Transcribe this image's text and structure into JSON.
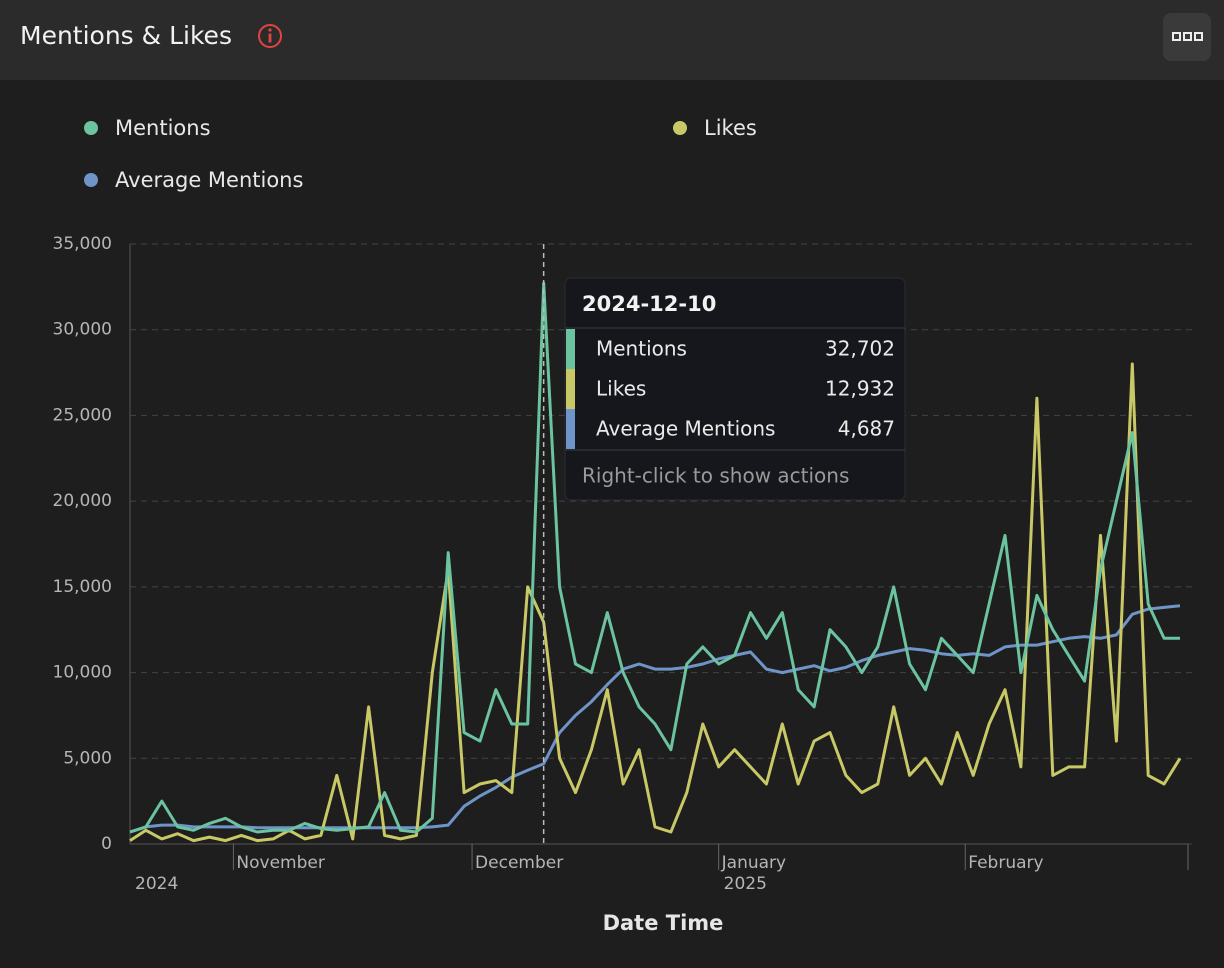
{
  "chart_data": {
    "type": "line",
    "title": "Mentions & Likes",
    "xlabel": "Date Time",
    "x": [
      "2024-10-19",
      "2024-10-21",
      "2024-10-23",
      "2024-10-25",
      "2024-10-27",
      "2024-10-29",
      "2024-10-31",
      "2024-11-02",
      "2024-11-04",
      "2024-11-06",
      "2024-11-08",
      "2024-11-10",
      "2024-11-12",
      "2024-11-14",
      "2024-11-16",
      "2024-11-18",
      "2024-11-20",
      "2024-11-22",
      "2024-11-24",
      "2024-11-26",
      "2024-11-28",
      "2024-11-30",
      "2024-12-02",
      "2024-12-04",
      "2024-12-06",
      "2024-12-08",
      "2024-12-10",
      "2024-12-12",
      "2024-12-14",
      "2024-12-16",
      "2024-12-18",
      "2024-12-20",
      "2024-12-22",
      "2024-12-24",
      "2024-12-26",
      "2024-12-28",
      "2024-12-30",
      "2025-01-01",
      "2025-01-03",
      "2025-01-05",
      "2025-01-07",
      "2025-01-09",
      "2025-01-11",
      "2025-01-13",
      "2025-01-15",
      "2025-01-17",
      "2025-01-19",
      "2025-01-21",
      "2025-01-23",
      "2025-01-25",
      "2025-01-27",
      "2025-01-29",
      "2025-01-31",
      "2025-02-02",
      "2025-02-04",
      "2025-02-06",
      "2025-02-08",
      "2025-02-10",
      "2025-02-12",
      "2025-02-14",
      "2025-02-16",
      "2025-02-18",
      "2025-02-20",
      "2025-02-22",
      "2025-02-24",
      "2025-02-26",
      "2025-02-28"
    ],
    "series": [
      {
        "name": "Mentions",
        "color": "#6cc39f",
        "values": [
          700,
          1000,
          2500,
          1000,
          800,
          1200,
          1500,
          1000,
          700,
          800,
          800,
          1200,
          900,
          800,
          900,
          1000,
          3000,
          800,
          700,
          1500,
          17000,
          6500,
          6000,
          9000,
          7000,
          7000,
          32702,
          15000,
          10500,
          10000,
          13500,
          10000,
          8000,
          7000,
          5500,
          10500,
          11500,
          10500,
          11000,
          13500,
          12000,
          13500,
          9000,
          8000,
          12500,
          11500,
          10000,
          11500,
          15000,
          10500,
          9000,
          12000,
          11000,
          10000,
          14000,
          18000,
          10000,
          14500,
          12500,
          11000,
          9500,
          16000,
          20000,
          24000,
          14000,
          12000,
          12000
        ]
      },
      {
        "name": "Likes",
        "color": "#c9c866",
        "values": [
          200,
          800,
          300,
          600,
          200,
          400,
          200,
          500,
          200,
          300,
          800,
          300,
          500,
          4000,
          300,
          8000,
          500,
          300,
          500,
          10000,
          16000,
          3000,
          3500,
          3700,
          3000,
          15000,
          12932,
          5000,
          3000,
          5500,
          9000,
          3500,
          5500,
          1000,
          700,
          3000,
          7000,
          4500,
          5500,
          4500,
          3500,
          7000,
          3500,
          6000,
          6500,
          4000,
          3000,
          3500,
          8000,
          4000,
          5000,
          3500,
          6500,
          4000,
          7000,
          9000,
          4500,
          26000,
          4000,
          4500,
          4500,
          18000,
          6000,
          28000,
          4000,
          3500,
          5000
        ]
      },
      {
        "name": "Average Mentions",
        "color": "#6f95c8",
        "values": [
          700,
          1000,
          1100,
          1100,
          1000,
          1000,
          1000,
          1000,
          950,
          950,
          950,
          950,
          950,
          950,
          950,
          950,
          950,
          950,
          950,
          1000,
          1100,
          2200,
          2800,
          3300,
          3900,
          4300,
          4687,
          6500,
          7500,
          8300,
          9300,
          10200,
          10500,
          10200,
          10200,
          10300,
          10500,
          10800,
          11000,
          11200,
          10200,
          10000,
          10200,
          10400,
          10100,
          10300,
          10700,
          11000,
          11200,
          11400,
          11300,
          11100,
          11000,
          11100,
          11000,
          11500,
          11600,
          11600,
          11800,
          12000,
          12100,
          12000,
          12200,
          13400,
          13700,
          13800,
          13900
        ]
      }
    ],
    "xlim": [
      "2024-10-19",
      "2025-03-01"
    ],
    "xticks": [
      {
        "value": "2024-11-01",
        "label": "November"
      },
      {
        "value": "2024-12-01",
        "label": "December"
      },
      {
        "value": "2025-01-01",
        "label": "January"
      },
      {
        "value": "2025-02-01",
        "label": "February"
      }
    ],
    "year_labels": [
      {
        "value": "2024-10-19",
        "label": "2024"
      },
      {
        "value": "2025-01-01",
        "label": "2025"
      }
    ],
    "ylim": [
      0,
      35000
    ],
    "yticks": [
      0,
      {
        "value": 5000,
        "label": "5,000"
      },
      {
        "value": 10000,
        "label": "10,000"
      },
      {
        "value": 15000,
        "label": "15,000"
      },
      {
        "value": 20000,
        "label": "20,000"
      },
      {
        "value": 25000,
        "label": "25,000"
      },
      {
        "value": 30000,
        "label": "30,000"
      },
      {
        "value": 35000,
        "label": "35,000"
      }
    ],
    "grid": true,
    "tooltip": {
      "x": "2024-12-10",
      "values": [
        32702,
        12932,
        4687
      ],
      "value_labels": [
        "32,702",
        "12,932",
        "4,687"
      ],
      "hint": "Right-click to show actions"
    }
  }
}
